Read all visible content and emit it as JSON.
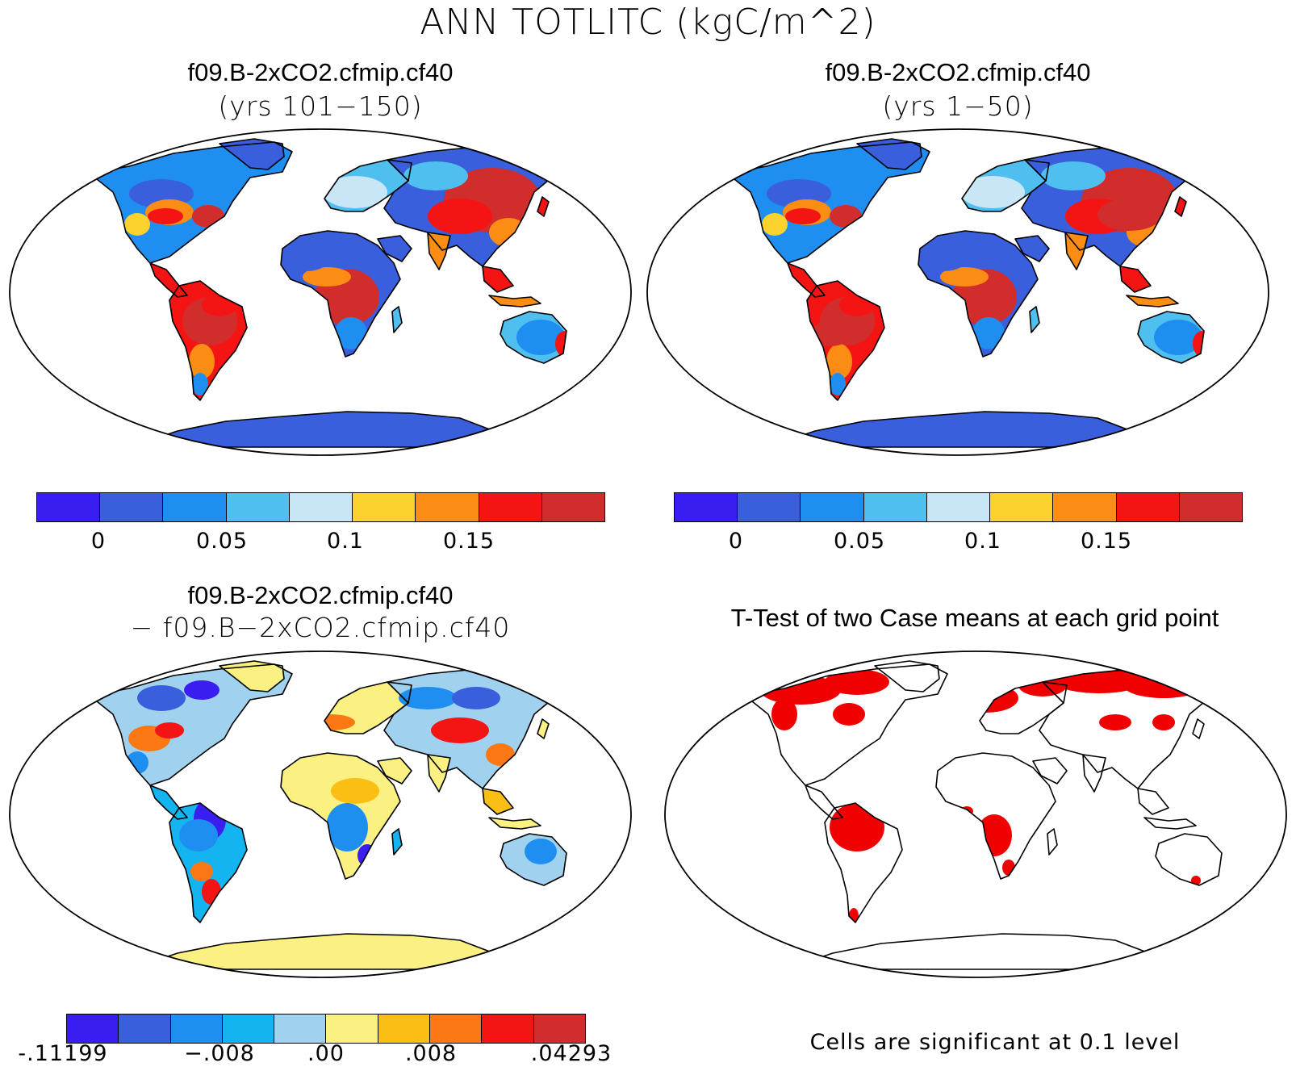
{
  "title": "ANN TOTLITC (kgC/m^2)",
  "panels": [
    {
      "title": "f09.B-2xCO2.cfmip.cf40",
      "subtitle": "(yrs 101−150)"
    },
    {
      "title": "f09.B-2xCO2.cfmip.cf40",
      "subtitle": "(yrs 1−50)"
    },
    {
      "title": "f09.B-2xCO2.cfmip.cf40",
      "subtitle": "− f09.B−2xCO2.cfmip.cf40"
    },
    {
      "title": "T-Test of two Case means at each grid point",
      "subtitle": ""
    }
  ],
  "colorbar_main": {
    "colors": [
      "#3a1df0",
      "#3a5fdc",
      "#1e8ff0",
      "#4fbff0",
      "#c8e6f6",
      "#fbd22e",
      "#fb8c14",
      "#f51414",
      "#d22d2d"
    ],
    "labels": [
      "0",
      "0.05",
      "0.1",
      "0.15"
    ]
  },
  "colorbar_diff": {
    "colors": [
      "#3a1df0",
      "#3a5fdc",
      "#1e8ff0",
      "#14b4f0",
      "#a0d2f0",
      "#fbf082",
      "#fbbe14",
      "#fb7814",
      "#f51414",
      "#d22d2d"
    ],
    "labels": [
      "-.11199",
      "−.008",
      ".00",
      ".008",
      ".04293"
    ]
  },
  "significance_color": "#f00000",
  "note": "Cells are significant at 0.1 level"
}
